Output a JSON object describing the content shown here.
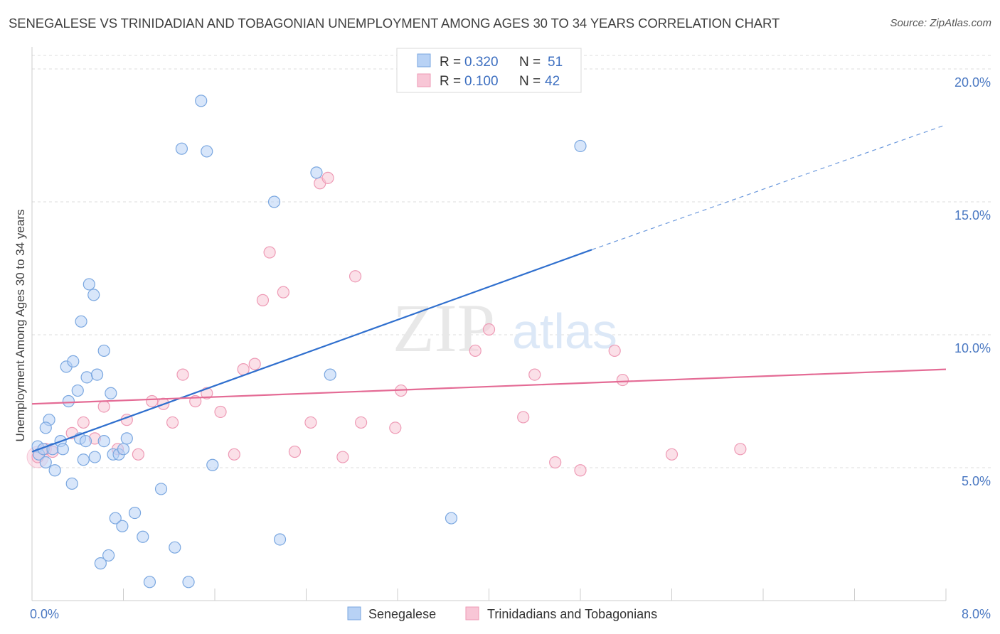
{
  "title": "SENEGALESE VS TRINIDADIAN AND TOBAGONIAN UNEMPLOYMENT AMONG AGES 30 TO 34 YEARS CORRELATION CHART",
  "source": "Source: ZipAtlas.com",
  "watermark": {
    "zip": "ZIP",
    "atlas": "atlas"
  },
  "colors": {
    "senegalese_fill": "#b8d2f5",
    "senegalese_stroke": "#7aa7e0",
    "senegalese_line": "#2f6fce",
    "trinidad_fill": "#f8c6d6",
    "trinidad_stroke": "#ee9ab5",
    "trinidad_line": "#e46b95",
    "tick_label": "#4a78c2",
    "grid": "#dddddd"
  },
  "legend": {
    "r_label": "R =",
    "n_label": "N =",
    "rows": [
      {
        "series": "Senegalese",
        "r": "0.320",
        "n": "51"
      },
      {
        "series": "Trinidadians and Tobagonians",
        "r": "0.100",
        "n": "42"
      }
    ]
  },
  "chart_data": {
    "type": "scatter",
    "title": "SENEGALESE VS TRINIDADIAN AND TOBAGONIAN UNEMPLOYMENT AMONG AGES 30 TO 34 YEARS CORRELATION CHART",
    "xlabel": "",
    "ylabel": "Unemployment Among Ages 30 to 34 years",
    "xlim": [
      0,
      8
    ],
    "ylim": [
      0,
      20
    ],
    "x_tick_labels": [
      "0.0%",
      "8.0%"
    ],
    "y_ticks": [
      5,
      10,
      15,
      20
    ],
    "y_tick_labels": [
      "5.0%",
      "10.0%",
      "15.0%",
      "20.0%"
    ],
    "grid": true,
    "legend_position": "top-center",
    "series": [
      {
        "name": "Senegalese",
        "trend": {
          "x": [
            0,
            4.9
          ],
          "y": [
            5.6,
            13.2
          ],
          "dashed_to": [
            8.0,
            17.9
          ]
        },
        "points": [
          [
            0.05,
            5.8
          ],
          [
            0.06,
            5.5
          ],
          [
            0.1,
            5.7
          ],
          [
            0.12,
            5.2
          ],
          [
            0.15,
            6.8
          ],
          [
            0.12,
            6.5
          ],
          [
            0.18,
            5.7
          ],
          [
            0.2,
            4.9
          ],
          [
            0.25,
            6.0
          ],
          [
            0.27,
            5.7
          ],
          [
            0.3,
            8.8
          ],
          [
            0.32,
            7.5
          ],
          [
            0.35,
            4.4
          ],
          [
            0.36,
            9.0
          ],
          [
            0.4,
            7.9
          ],
          [
            0.42,
            6.1
          ],
          [
            0.43,
            10.5
          ],
          [
            0.45,
            5.3
          ],
          [
            0.47,
            6.0
          ],
          [
            0.48,
            8.4
          ],
          [
            0.5,
            11.9
          ],
          [
            0.54,
            11.5
          ],
          [
            0.57,
            8.5
          ],
          [
            0.6,
            1.4
          ],
          [
            0.63,
            6.0
          ],
          [
            0.63,
            9.4
          ],
          [
            0.67,
            1.7
          ],
          [
            0.69,
            7.8
          ],
          [
            0.71,
            5.5
          ],
          [
            0.73,
            3.1
          ],
          [
            0.76,
            5.5
          ],
          [
            0.79,
            2.8
          ],
          [
            0.8,
            5.7
          ],
          [
            0.83,
            6.1
          ],
          [
            0.9,
            3.3
          ],
          [
            0.97,
            2.4
          ],
          [
            1.03,
            0.7
          ],
          [
            1.13,
            4.2
          ],
          [
            1.25,
            2.0
          ],
          [
            1.31,
            17.0
          ],
          [
            1.37,
            0.7
          ],
          [
            1.48,
            18.8
          ],
          [
            1.53,
            16.9
          ],
          [
            1.58,
            5.1
          ],
          [
            2.12,
            15.0
          ],
          [
            2.17,
            2.3
          ],
          [
            2.49,
            16.1
          ],
          [
            2.61,
            8.5
          ],
          [
            3.67,
            3.1
          ],
          [
            4.8,
            17.1
          ],
          [
            0.55,
            5.4
          ]
        ]
      },
      {
        "name": "Trinidadians and Tobagonians",
        "trend": {
          "x": [
            0,
            8.0
          ],
          "y": [
            7.4,
            8.7
          ]
        },
        "points": [
          [
            0.05,
            5.4
          ],
          [
            0.12,
            5.7
          ],
          [
            0.18,
            5.6
          ],
          [
            0.35,
            6.3
          ],
          [
            0.45,
            6.7
          ],
          [
            0.55,
            6.1
          ],
          [
            0.63,
            7.3
          ],
          [
            0.75,
            5.7
          ],
          [
            0.83,
            6.8
          ],
          [
            0.93,
            5.5
          ],
          [
            1.05,
            7.5
          ],
          [
            1.15,
            7.4
          ],
          [
            1.23,
            6.7
          ],
          [
            1.32,
            8.5
          ],
          [
            1.43,
            7.5
          ],
          [
            1.53,
            7.8
          ],
          [
            1.65,
            7.1
          ],
          [
            1.77,
            5.5
          ],
          [
            1.85,
            8.7
          ],
          [
            1.95,
            8.9
          ],
          [
            2.02,
            11.3
          ],
          [
            2.08,
            13.1
          ],
          [
            2.2,
            11.6
          ],
          [
            2.3,
            5.6
          ],
          [
            2.44,
            6.7
          ],
          [
            2.52,
            15.7
          ],
          [
            2.59,
            15.9
          ],
          [
            2.72,
            5.4
          ],
          [
            2.83,
            12.2
          ],
          [
            2.88,
            6.7
          ],
          [
            3.18,
            6.5
          ],
          [
            3.23,
            7.9
          ],
          [
            3.88,
            9.4
          ],
          [
            4.0,
            10.2
          ],
          [
            4.3,
            6.9
          ],
          [
            4.4,
            8.5
          ],
          [
            4.58,
            5.2
          ],
          [
            4.8,
            4.9
          ],
          [
            5.1,
            9.4
          ],
          [
            5.17,
            8.3
          ],
          [
            5.6,
            5.5
          ],
          [
            6.2,
            5.7
          ]
        ]
      }
    ]
  },
  "bottom_legend": [
    "Senegalese",
    "Trinidadians and Tobagonians"
  ]
}
